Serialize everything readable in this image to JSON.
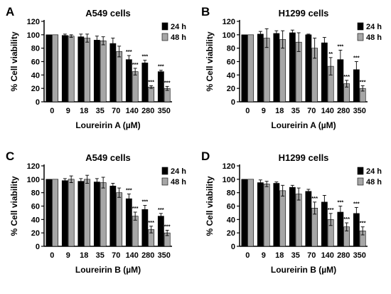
{
  "chart_data": [
    {
      "type": "bar",
      "panel": "A",
      "title": "A549 cells",
      "xlabel": "Loureirin A (µM)",
      "ylabel": "% Cell viability",
      "ylim": [
        0,
        120
      ],
      "yticks": [
        "0",
        "20",
        "40",
        "60",
        "80",
        "100",
        "120"
      ],
      "categories": [
        "0",
        "9",
        "18",
        "35",
        "70",
        "140",
        "280",
        "350"
      ],
      "series": [
        {
          "name": "24 h",
          "color": "#000000",
          "values": [
            100,
            99,
            97,
            92,
            87,
            63,
            58,
            45
          ],
          "errors": [
            0,
            2,
            4,
            6,
            8,
            6,
            4,
            2
          ],
          "sig": [
            "",
            "",
            "",
            "",
            "",
            "***",
            "***",
            "***"
          ]
        },
        {
          "name": "48 h",
          "color": "#a6a6a6",
          "values": [
            100,
            98,
            95,
            91,
            75,
            45,
            22,
            20
          ],
          "errors": [
            0,
            2,
            6,
            6,
            8,
            5,
            2,
            3
          ],
          "sig": [
            "",
            "",
            "",
            "",
            "",
            "***",
            "***",
            "***"
          ]
        }
      ],
      "legend_position": "top-right"
    },
    {
      "type": "bar",
      "panel": "B",
      "title": "H1299 cells",
      "xlabel": "Loureirin A (µM)",
      "ylabel": "% Cell viability",
      "ylim": [
        0,
        120
      ],
      "yticks": [
        "0",
        "20",
        "40",
        "60",
        "80",
        "100",
        "120"
      ],
      "categories": [
        "0",
        "9",
        "18",
        "35",
        "70",
        "140",
        "280",
        "350"
      ],
      "series": [
        {
          "name": "24 h",
          "color": "#000000",
          "values": [
            100,
            101,
            102,
            103,
            100,
            88,
            63,
            48
          ],
          "errors": [
            0,
            4,
            4,
            4,
            1,
            8,
            14,
            12
          ],
          "sig": [
            "",
            "",
            "",
            "",
            "",
            "",
            "***",
            "***"
          ]
        },
        {
          "name": "48 h",
          "color": "#a6a6a6",
          "values": [
            100,
            95,
            93,
            89,
            80,
            53,
            27,
            20
          ],
          "errors": [
            0,
            14,
            13,
            14,
            15,
            13,
            5,
            4
          ],
          "sig": [
            "",
            "",
            "",
            "",
            "",
            "**",
            "***",
            "***"
          ]
        }
      ],
      "legend_position": "top-right"
    },
    {
      "type": "bar",
      "panel": "C",
      "title": "A549 cells",
      "xlabel": "Loureirin B (µM)",
      "ylabel": "% Cell viability",
      "ylim": [
        0,
        120
      ],
      "yticks": [
        "0",
        "20",
        "40",
        "60",
        "80",
        "100",
        "120"
      ],
      "categories": [
        "0",
        "9",
        "18",
        "35",
        "70",
        "140",
        "280",
        "350"
      ],
      "series": [
        {
          "name": "24 h",
          "color": "#000000",
          "values": [
            100,
            98,
            97,
            96,
            90,
            71,
            55,
            45
          ],
          "errors": [
            0,
            3,
            4,
            5,
            4,
            7,
            6,
            4
          ],
          "sig": [
            "",
            "",
            "",
            "",
            "",
            "***",
            "***",
            "***"
          ]
        },
        {
          "name": "48 h",
          "color": "#a6a6a6",
          "values": [
            100,
            100,
            100,
            95,
            80,
            45,
            25,
            20
          ],
          "errors": [
            0,
            5,
            6,
            8,
            7,
            6,
            5,
            4
          ],
          "sig": [
            "",
            "",
            "",
            "",
            "",
            "***",
            "***",
            "***"
          ]
        }
      ],
      "legend_position": "top-right"
    },
    {
      "type": "bar",
      "panel": "D",
      "title": "H1299 cells",
      "xlabel": "Loureirin B (µM)",
      "ylabel": "% Cell viability",
      "ylim": [
        0,
        120
      ],
      "yticks": [
        "0",
        "20",
        "40",
        "60",
        "80",
        "100",
        "120"
      ],
      "categories": [
        "0",
        "9",
        "18",
        "35",
        "70",
        "140",
        "280",
        "350"
      ],
      "series": [
        {
          "name": "24 h",
          "color": "#000000",
          "values": [
            100,
            95,
            94,
            88,
            82,
            66,
            51,
            49
          ],
          "errors": [
            0,
            4,
            2,
            3,
            3,
            10,
            9,
            9
          ],
          "sig": [
            "",
            "",
            "",
            "",
            "",
            "",
            "***",
            "***"
          ]
        },
        {
          "name": "48 h",
          "color": "#a6a6a6",
          "values": [
            100,
            93,
            83,
            78,
            57,
            40,
            29,
            23
          ],
          "errors": [
            0,
            4,
            8,
            9,
            9,
            9,
            6,
            6
          ],
          "sig": [
            "",
            "",
            "",
            "",
            "***",
            "***",
            "***",
            "***"
          ]
        }
      ],
      "legend_position": "top-right"
    }
  ]
}
